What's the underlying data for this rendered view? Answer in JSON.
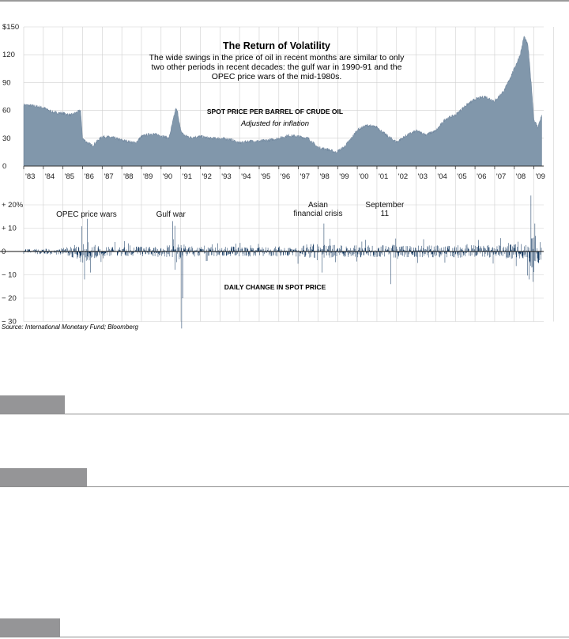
{
  "chart_data": [
    {
      "type": "area",
      "title": "The Return of Volatility",
      "subtitle": "The wide swings in the price of oil in recent months are similar to only two other periods in recent decades: the gulf war in 1990-91 and the OPEC price wars of the mid-1980s.",
      "subtitle_lines": [
        "The wide swings in the price of oil in recent months are similar to only",
        "two other periods in recent decades: the gulf war in 1990-91 and the",
        "OPEC price wars of the mid-1980s."
      ],
      "label": "SPOT PRICE PER BARREL OF CRUDE OIL",
      "sublabel": "Adjusted for inflation",
      "ylim": [
        0,
        150
      ],
      "yticks": [
        "0",
        "30",
        "60",
        "90",
        "120",
        "$150"
      ],
      "ytick_values": [
        0,
        30,
        60,
        90,
        120,
        150
      ],
      "xticks": [
        "'83",
        "'84",
        "'85",
        "'86",
        "'87",
        "'88",
        "'89",
        "'90",
        "'91",
        "'92",
        "'93",
        "'94",
        "'95",
        "'96",
        "'97",
        "'98",
        "'99",
        "'00",
        "'01",
        "'02",
        "'03",
        "'04",
        "'05",
        "'06",
        "'07",
        "'08",
        "'09"
      ],
      "x": [
        1983.0,
        1983.5,
        1984.0,
        1984.5,
        1985.0,
        1985.4,
        1985.9,
        1986.0,
        1986.2,
        1986.5,
        1987.0,
        1987.5,
        1988.0,
        1988.7,
        1989.0,
        1989.5,
        1990.0,
        1990.4,
        1990.75,
        1990.85,
        1991.0,
        1991.2,
        1991.5,
        1992.0,
        1992.5,
        1993.0,
        1993.5,
        1994.0,
        1994.5,
        1995.0,
        1995.5,
        1996.0,
        1996.5,
        1997.0,
        1997.5,
        1998.0,
        1998.5,
        1998.9,
        1999.3,
        1999.7,
        2000.0,
        2000.5,
        2001.0,
        2001.5,
        2002.0,
        2002.5,
        2003.0,
        2003.5,
        2004.0,
        2004.5,
        2005.0,
        2005.5,
        2006.0,
        2006.5,
        2007.0,
        2007.5,
        2008.0,
        2008.3,
        2008.5,
        2008.7,
        2008.9,
        2009.0,
        2009.2,
        2009.4
      ],
      "y": [
        66,
        65,
        63,
        58,
        57,
        55,
        60,
        30,
        26,
        22,
        32,
        31,
        28,
        25,
        32,
        35,
        33,
        30,
        62,
        58,
        38,
        33,
        31,
        32,
        30,
        30,
        29,
        25,
        27,
        27,
        28,
        30,
        33,
        32,
        30,
        20,
        18,
        15,
        20,
        30,
        39,
        44,
        42,
        33,
        26,
        33,
        38,
        34,
        38,
        51,
        55,
        65,
        72,
        75,
        70,
        82,
        105,
        120,
        140,
        130,
        80,
        50,
        42,
        55
      ]
    },
    {
      "type": "bar",
      "title": "",
      "label": "DAILY CHANGE IN SPOT PRICE",
      "ylim": [
        -30,
        20
      ],
      "yticks": [
        "+ 20%",
        "+ 10",
        "0",
        "− 10",
        "− 20",
        "− 30"
      ],
      "ytick_values": [
        20,
        10,
        0,
        -10,
        -20,
        -30
      ],
      "volatility_profile": {
        "x": [
          1983.0,
          1984.0,
          1985.0,
          1985.7,
          1986.0,
          1986.3,
          1986.6,
          1987.0,
          1988.0,
          1989.0,
          1989.8,
          1990.55,
          1990.7,
          1990.85,
          1991.05,
          1991.3,
          1992.0,
          1994.0,
          1996.0,
          1997.0,
          1997.8,
          1998.1,
          1998.9,
          1999.5,
          2001.0,
          2001.7,
          2002.5,
          2004.0,
          2006.0,
          2007.5,
          2008.5,
          2008.8,
          2008.95,
          2009.2,
          2009.4
        ],
        "typical_abs_change_pct": [
          1.0,
          1.2,
          1.5,
          3.0,
          5.5,
          4.5,
          3.0,
          2.0,
          2.0,
          2.2,
          2.0,
          3.0,
          4.0,
          5.0,
          4.0,
          2.5,
          2.0,
          2.2,
          2.2,
          2.5,
          3.0,
          3.2,
          2.8,
          2.6,
          2.7,
          3.0,
          2.4,
          2.7,
          2.7,
          2.9,
          3.5,
          6.0,
          7.5,
          6.0,
          4.5
        ]
      },
      "annotations": [
        {
          "text": "OPEC price wars",
          "x": 1986.2
        },
        {
          "text": "Gulf war",
          "x": 1990.5
        },
        {
          "text": "Asian\nfinancial crisis",
          "x": 1998.0
        },
        {
          "text": "September\n11",
          "x": 2001.4
        }
      ]
    }
  ],
  "source": "Source: International Monetary Fund; Bloomberg",
  "colors": {
    "area_fill": "#8197ab",
    "area_line": "#5e7690",
    "bars": "#1b3f66",
    "grid": "#cfcfcf",
    "axis": "#333333"
  }
}
